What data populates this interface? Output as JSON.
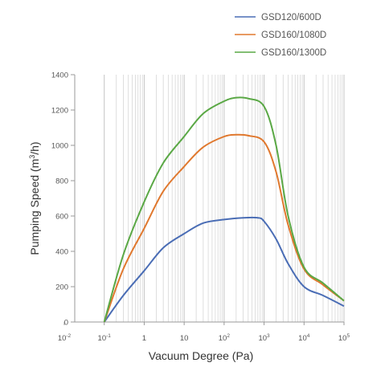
{
  "chart_data": {
    "type": "line",
    "title": "",
    "xlabel": "Vacuum Degree (Pa)",
    "ylabel_main": "Pumping Speed (m",
    "ylabel_sup": "3",
    "ylabel_tail": "/h)",
    "x_scale": "log",
    "xlim": [
      0.01,
      100000
    ],
    "ylim": [
      0,
      1400
    ],
    "grid": "vertical log gridlines",
    "legend_position": "top-right",
    "x_ticks": [
      {
        "value": 0.01,
        "base": "10",
        "exp": "-2"
      },
      {
        "value": 0.1,
        "base": "10",
        "exp": "-1"
      },
      {
        "value": 1,
        "base": "1",
        "exp": ""
      },
      {
        "value": 10,
        "base": "10",
        "exp": ""
      },
      {
        "value": 100,
        "base": "10",
        "exp": "2"
      },
      {
        "value": 1000,
        "base": "10",
        "exp": "3"
      },
      {
        "value": 10000,
        "base": "10",
        "exp": "4"
      },
      {
        "value": 100000,
        "base": "10",
        "exp": "5"
      }
    ],
    "y_ticks": [
      "0",
      "200",
      "400",
      "600",
      "800",
      "1000",
      "1200",
      "1400"
    ],
    "series": [
      {
        "name": "GSD120/600D",
        "color": "#4a6db5",
        "points": [
          [
            0.1,
            0
          ],
          [
            0.3,
            150
          ],
          [
            1,
            290
          ],
          [
            3,
            420
          ],
          [
            10,
            500
          ],
          [
            30,
            560
          ],
          [
            100,
            580
          ],
          [
            300,
            590
          ],
          [
            700,
            590
          ],
          [
            1000,
            570
          ],
          [
            2000,
            470
          ],
          [
            4000,
            330
          ],
          [
            10000,
            200
          ],
          [
            30000,
            150
          ],
          [
            100000,
            90
          ]
        ]
      },
      {
        "name": "GSD160/1080D",
        "color": "#e0782e",
        "points": [
          [
            0.1,
            0
          ],
          [
            0.3,
            300
          ],
          [
            1,
            530
          ],
          [
            3,
            740
          ],
          [
            10,
            880
          ],
          [
            30,
            990
          ],
          [
            100,
            1050
          ],
          [
            200,
            1060
          ],
          [
            400,
            1055
          ],
          [
            1000,
            1020
          ],
          [
            2000,
            850
          ],
          [
            4000,
            550
          ],
          [
            10000,
            300
          ],
          [
            30000,
            210
          ],
          [
            100000,
            120
          ]
        ]
      },
      {
        "name": "GSD160/1300D",
        "color": "#5aa845",
        "points": [
          [
            0.1,
            0
          ],
          [
            0.3,
            380
          ],
          [
            1,
            680
          ],
          [
            3,
            900
          ],
          [
            10,
            1050
          ],
          [
            30,
            1180
          ],
          [
            100,
            1250
          ],
          [
            200,
            1270
          ],
          [
            400,
            1265
          ],
          [
            1000,
            1220
          ],
          [
            2000,
            1000
          ],
          [
            4000,
            600
          ],
          [
            10000,
            310
          ],
          [
            30000,
            220
          ],
          [
            100000,
            120
          ]
        ]
      }
    ]
  }
}
